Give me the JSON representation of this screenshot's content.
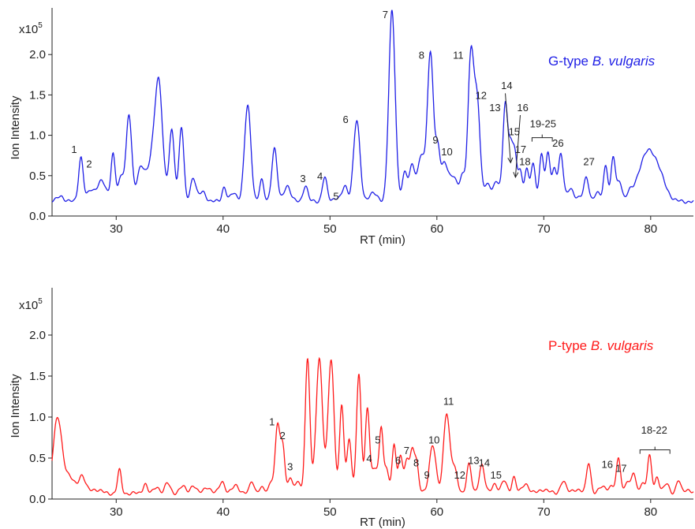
{
  "chart_data": [
    {
      "type": "line",
      "title_prefix": "G-type ",
      "title_italic": "B. vulgaris",
      "title_color": "#1f1fe6",
      "line_color": "#1f1fe6",
      "scale_label": "x10",
      "scale_exp": "5",
      "xlabel": "RT (min)",
      "ylabel": "Ion Intensity",
      "xlim": [
        24,
        84
      ],
      "ylim": [
        0.0,
        2.5
      ],
      "xticks": [
        30,
        40,
        50,
        60,
        70,
        80
      ],
      "yticks": [
        0.0,
        0.5,
        1.0,
        1.5,
        2.0
      ],
      "baseline": 0.18,
      "peaks": [
        [
          24.8,
          0.07,
          0.3
        ],
        [
          26.7,
          0.55,
          0.22
        ],
        [
          27.6,
          0.12,
          0.3
        ],
        [
          28.6,
          0.25,
          0.45
        ],
        [
          29.7,
          0.58,
          0.2
        ],
        [
          30.5,
          0.3,
          0.3
        ],
        [
          31.2,
          1.07,
          0.25
        ],
        [
          32.3,
          0.4,
          0.35
        ],
        [
          33.4,
          0.5,
          0.5
        ],
        [
          34.0,
          1.28,
          0.35
        ],
        [
          35.2,
          0.88,
          0.25
        ],
        [
          36.1,
          0.92,
          0.22
        ],
        [
          37.2,
          0.3,
          0.25
        ],
        [
          38.1,
          0.12,
          0.3
        ],
        [
          40.1,
          0.18,
          0.2
        ],
        [
          41.0,
          0.1,
          0.3
        ],
        [
          42.3,
          1.18,
          0.3
        ],
        [
          43.6,
          0.26,
          0.2
        ],
        [
          44.8,
          0.66,
          0.25
        ],
        [
          46.0,
          0.2,
          0.3
        ],
        [
          47.7,
          0.2,
          0.22
        ],
        [
          49.5,
          0.3,
          0.22
        ],
        [
          50.6,
          0.05,
          0.3
        ],
        [
          51.4,
          0.18,
          0.25
        ],
        [
          52.5,
          1.0,
          0.3
        ],
        [
          54.0,
          0.1,
          0.4
        ],
        [
          55.8,
          2.35,
          0.3
        ],
        [
          57.0,
          0.35,
          0.25
        ],
        [
          57.7,
          0.45,
          0.25
        ],
        [
          58.5,
          0.55,
          0.3
        ],
        [
          59.4,
          1.85,
          0.3
        ],
        [
          60.1,
          0.55,
          0.2
        ],
        [
          60.7,
          0.45,
          0.3
        ],
        [
          61.5,
          0.3,
          0.4
        ],
        [
          62.4,
          0.3,
          0.25
        ],
        [
          63.2,
          1.85,
          0.28
        ],
        [
          63.8,
          1.15,
          0.25
        ],
        [
          64.7,
          0.2,
          0.35
        ],
        [
          65.6,
          0.25,
          0.3
        ],
        [
          66.4,
          1.2,
          0.22
        ],
        [
          66.9,
          0.65,
          0.2
        ],
        [
          67.3,
          0.55,
          0.2
        ],
        [
          67.8,
          0.35,
          0.2
        ],
        [
          68.4,
          0.4,
          0.2
        ],
        [
          69.0,
          0.45,
          0.22
        ],
        [
          69.8,
          0.6,
          0.2
        ],
        [
          70.4,
          0.6,
          0.2
        ],
        [
          71.0,
          0.4,
          0.2
        ],
        [
          71.6,
          0.6,
          0.22
        ],
        [
          72.5,
          0.15,
          0.3
        ],
        [
          73.4,
          0.05,
          0.4
        ],
        [
          74.0,
          0.28,
          0.22
        ],
        [
          75.0,
          0.1,
          0.3
        ],
        [
          75.8,
          0.45,
          0.2
        ],
        [
          76.5,
          0.55,
          0.2
        ],
        [
          77.1,
          0.25,
          0.22
        ],
        [
          78.0,
          0.1,
          0.3
        ],
        [
          79.0,
          0.3,
          0.5
        ],
        [
          79.8,
          0.45,
          0.5
        ],
        [
          80.6,
          0.35,
          0.5
        ],
        [
          81.4,
          0.1,
          0.5
        ]
      ],
      "annotations": [
        {
          "label": "1",
          "x": 25.8,
          "y": 0.78
        },
        {
          "label": "2",
          "x": 27.2,
          "y": 0.6
        },
        {
          "label": "3",
          "x": 47.2,
          "y": 0.42
        },
        {
          "label": "4",
          "x": 48.8,
          "y": 0.45
        },
        {
          "label": "5",
          "x": 50.3,
          "y": 0.2
        },
        {
          "label": "6",
          "x": 51.2,
          "y": 1.15
        },
        {
          "label": "7",
          "x": 54.9,
          "y": 2.45
        },
        {
          "label": "8",
          "x": 58.3,
          "y": 1.95
        },
        {
          "label": "9",
          "x": 59.6,
          "y": 0.9
        },
        {
          "label": "10",
          "x": 60.4,
          "y": 0.75
        },
        {
          "label": "11",
          "x": 61.5,
          "y": 1.95
        },
        {
          "label": "12",
          "x": 63.6,
          "y": 1.45
        },
        {
          "label": "13",
          "x": 64.9,
          "y": 1.3
        },
        {
          "label": "14",
          "x": 66.0,
          "y": 1.57
        },
        {
          "label": "15",
          "x": 66.7,
          "y": 1.0
        },
        {
          "label": "16",
          "x": 67.5,
          "y": 1.3
        },
        {
          "label": "17",
          "x": 67.3,
          "y": 0.78
        },
        {
          "label": "18",
          "x": 67.7,
          "y": 0.63
        },
        {
          "label": "19-25",
          "x": 68.7,
          "y": 1.1
        },
        {
          "label": "26",
          "x": 70.8,
          "y": 0.86
        },
        {
          "label": "27",
          "x": 73.7,
          "y": 0.63
        }
      ],
      "arrows": [
        {
          "x1": 66.4,
          "y1": 1.52,
          "x2": 66.9,
          "y2": 0.66
        },
        {
          "x1": 67.8,
          "y1": 1.25,
          "x2": 67.35,
          "y2": 0.48
        }
      ],
      "brackets": [
        {
          "x1": 68.9,
          "x2": 70.8,
          "y": 0.97
        }
      ]
    },
    {
      "type": "line",
      "title_prefix": "P-type ",
      "title_italic": "B. vulgaris",
      "title_color": "#ff1a1a",
      "line_color": "#ff1a1a",
      "scale_label": "x10",
      "scale_exp": "5",
      "xlabel": "RT (min)",
      "ylabel": "Ion Intensity",
      "xlim": [
        24,
        84
      ],
      "ylim": [
        0.0,
        2.5
      ],
      "xticks": [
        30,
        40,
        50,
        60,
        70,
        80
      ],
      "yticks": [
        0.0,
        0.5,
        1.0,
        1.5,
        2.0
      ],
      "baseline": 0.07,
      "peaks": [
        [
          24.5,
          0.87,
          0.4
        ],
        [
          25.5,
          0.2,
          0.6
        ],
        [
          26.8,
          0.2,
          0.3
        ],
        [
          28.0,
          0.05,
          0.5
        ],
        [
          30.3,
          0.28,
          0.18
        ],
        [
          32.7,
          0.12,
          0.2
        ],
        [
          33.8,
          0.08,
          0.25
        ],
        [
          34.8,
          0.12,
          0.25
        ],
        [
          36.2,
          0.08,
          0.3
        ],
        [
          37.2,
          0.1,
          0.25
        ],
        [
          38.5,
          0.08,
          0.3
        ],
        [
          39.9,
          0.15,
          0.25
        ],
        [
          41.2,
          0.1,
          0.3
        ],
        [
          42.7,
          0.15,
          0.2
        ],
        [
          43.6,
          0.06,
          0.3
        ],
        [
          44.5,
          0.15,
          0.2
        ],
        [
          45.1,
          0.83,
          0.22
        ],
        [
          45.6,
          0.55,
          0.2
        ],
        [
          46.3,
          0.2,
          0.2
        ],
        [
          47.0,
          0.15,
          0.2
        ],
        [
          47.9,
          1.63,
          0.22
        ],
        [
          49.0,
          1.65,
          0.3
        ],
        [
          50.1,
          1.63,
          0.28
        ],
        [
          51.1,
          1.07,
          0.2
        ],
        [
          51.8,
          0.68,
          0.2
        ],
        [
          52.7,
          1.43,
          0.22
        ],
        [
          53.5,
          1.04,
          0.2
        ],
        [
          54.2,
          0.3,
          0.3
        ],
        [
          54.8,
          0.78,
          0.18
        ],
        [
          55.3,
          0.3,
          0.2
        ],
        [
          56.0,
          0.6,
          0.18
        ],
        [
          56.6,
          0.48,
          0.2
        ],
        [
          57.2,
          0.4,
          0.2
        ],
        [
          57.7,
          0.5,
          0.2
        ],
        [
          58.1,
          0.35,
          0.2
        ],
        [
          59.6,
          0.6,
          0.3
        ],
        [
          60.9,
          0.97,
          0.28
        ],
        [
          61.6,
          0.3,
          0.3
        ],
        [
          63.0,
          0.35,
          0.22
        ],
        [
          64.2,
          0.35,
          0.25
        ],
        [
          65.4,
          0.12,
          0.25
        ],
        [
          66.3,
          0.15,
          0.25
        ],
        [
          67.2,
          0.2,
          0.2
        ],
        [
          68.3,
          0.12,
          0.3
        ],
        [
          70.0,
          0.05,
          0.4
        ],
        [
          71.8,
          0.15,
          0.25
        ],
        [
          73.0,
          0.05,
          0.4
        ],
        [
          74.2,
          0.38,
          0.2
        ],
        [
          75.5,
          0.08,
          0.3
        ],
        [
          76.3,
          0.08,
          0.3
        ],
        [
          77.0,
          0.42,
          0.2
        ],
        [
          77.8,
          0.15,
          0.2
        ],
        [
          78.4,
          0.25,
          0.2
        ],
        [
          79.2,
          0.12,
          0.25
        ],
        [
          79.9,
          0.45,
          0.2
        ],
        [
          80.6,
          0.2,
          0.2
        ],
        [
          81.5,
          0.12,
          0.25
        ],
        [
          82.6,
          0.15,
          0.2
        ],
        [
          83.4,
          0.05,
          0.3
        ]
      ],
      "annotations": [
        {
          "label": "1",
          "x": 44.3,
          "y": 0.9
        },
        {
          "label": "2",
          "x": 45.3,
          "y": 0.73
        },
        {
          "label": "3",
          "x": 46.0,
          "y": 0.35
        },
        {
          "label": "4",
          "x": 53.4,
          "y": 0.45
        },
        {
          "label": "5",
          "x": 54.2,
          "y": 0.68
        },
        {
          "label": "6",
          "x": 56.1,
          "y": 0.43
        },
        {
          "label": "7",
          "x": 56.9,
          "y": 0.55
        },
        {
          "label": "8",
          "x": 57.8,
          "y": 0.4
        },
        {
          "label": "9",
          "x": 58.8,
          "y": 0.25
        },
        {
          "label": "10",
          "x": 59.2,
          "y": 0.68
        },
        {
          "label": "11",
          "x": 60.6,
          "y": 1.15
        },
        {
          "label": "12",
          "x": 61.6,
          "y": 0.25
        },
        {
          "label": "13",
          "x": 62.9,
          "y": 0.43
        },
        {
          "label": "14",
          "x": 63.9,
          "y": 0.4
        },
        {
          "label": "15",
          "x": 65.0,
          "y": 0.25
        },
        {
          "label": "16",
          "x": 75.4,
          "y": 0.38
        },
        {
          "label": "17",
          "x": 76.7,
          "y": 0.33
        },
        {
          "label": "18-22",
          "x": 79.1,
          "y": 0.8
        }
      ],
      "arrows": [],
      "brackets": [
        {
          "x1": 79.0,
          "x2": 81.8,
          "y": 0.6
        }
      ]
    }
  ]
}
